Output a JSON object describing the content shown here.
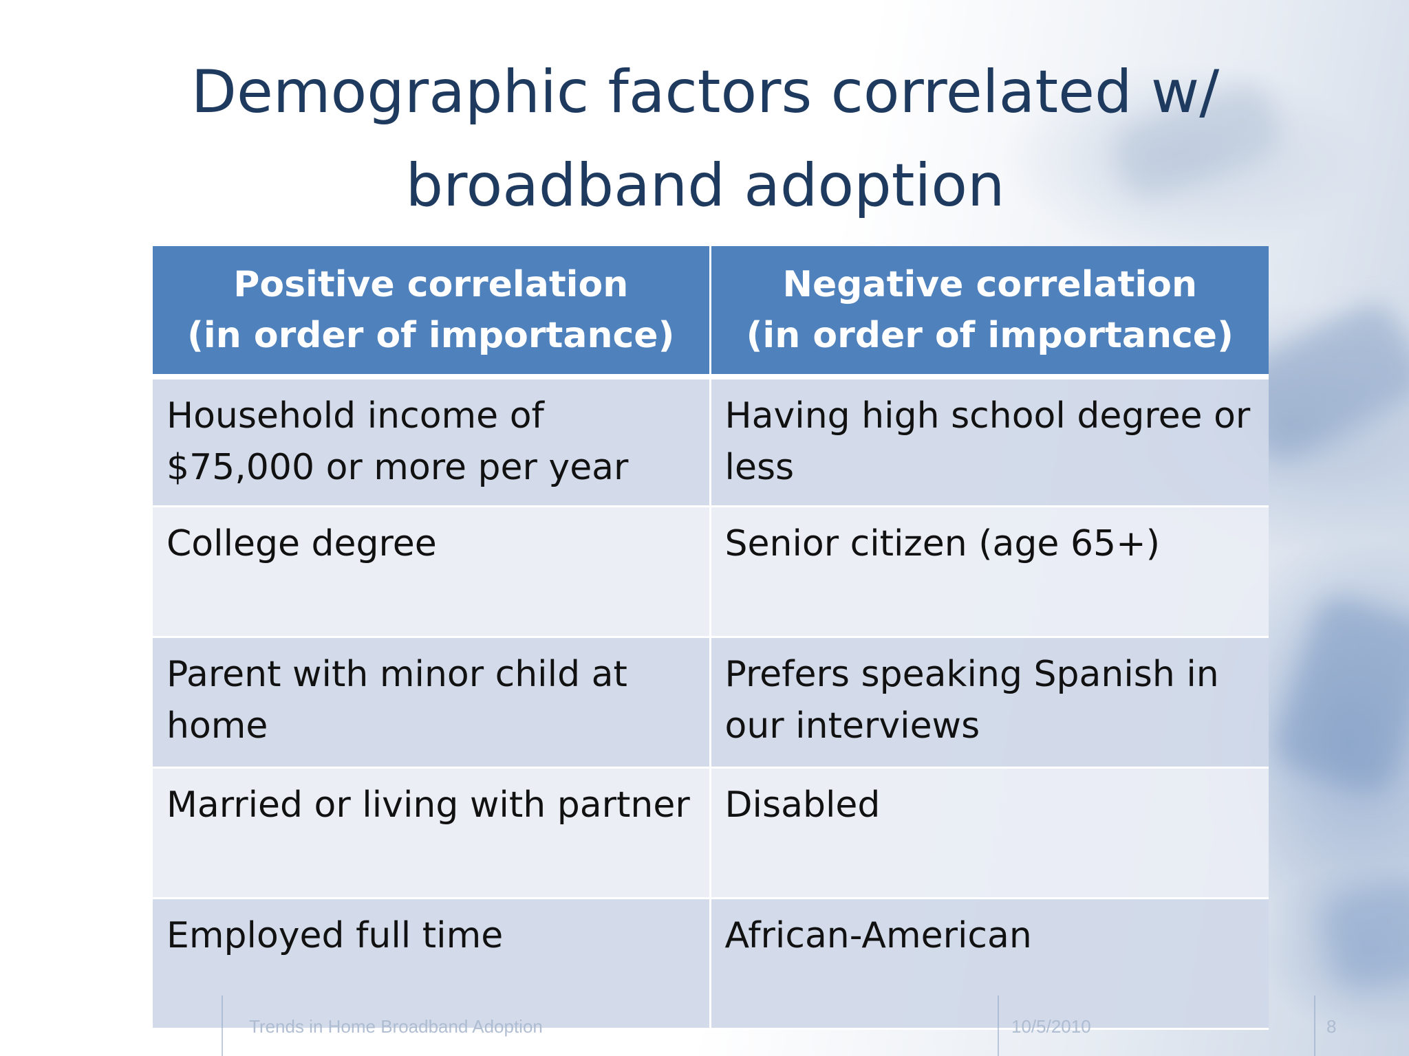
{
  "slide": {
    "title_line1": "Demographic factors correlated w/",
    "title_line2": "broadband adoption"
  },
  "table": {
    "headers": [
      {
        "line1": "Positive correlation",
        "line2": "(in order of importance)"
      },
      {
        "line1": "Negative correlation",
        "line2": "(in order of importance)"
      }
    ],
    "rows": [
      [
        "Household income of $75,000 or more per year",
        "Having high school degree or less"
      ],
      [
        "College degree",
        "Senior citizen (age 65+)"
      ],
      [
        "Parent with minor child at home",
        "Prefers speaking Spanish in our interviews"
      ],
      [
        "Married or living with partner",
        "Disabled"
      ],
      [
        "Employed full time",
        "African-American"
      ]
    ]
  },
  "footer": {
    "presentation_title": "Trends in Home Broadband Adoption",
    "date": "10/5/2010",
    "page_number": "8"
  },
  "colors": {
    "header_fill": "#4f81bd",
    "title_text": "#1f3a5f",
    "row_dark": "#d0d8e8",
    "row_light": "#e9edf4"
  }
}
